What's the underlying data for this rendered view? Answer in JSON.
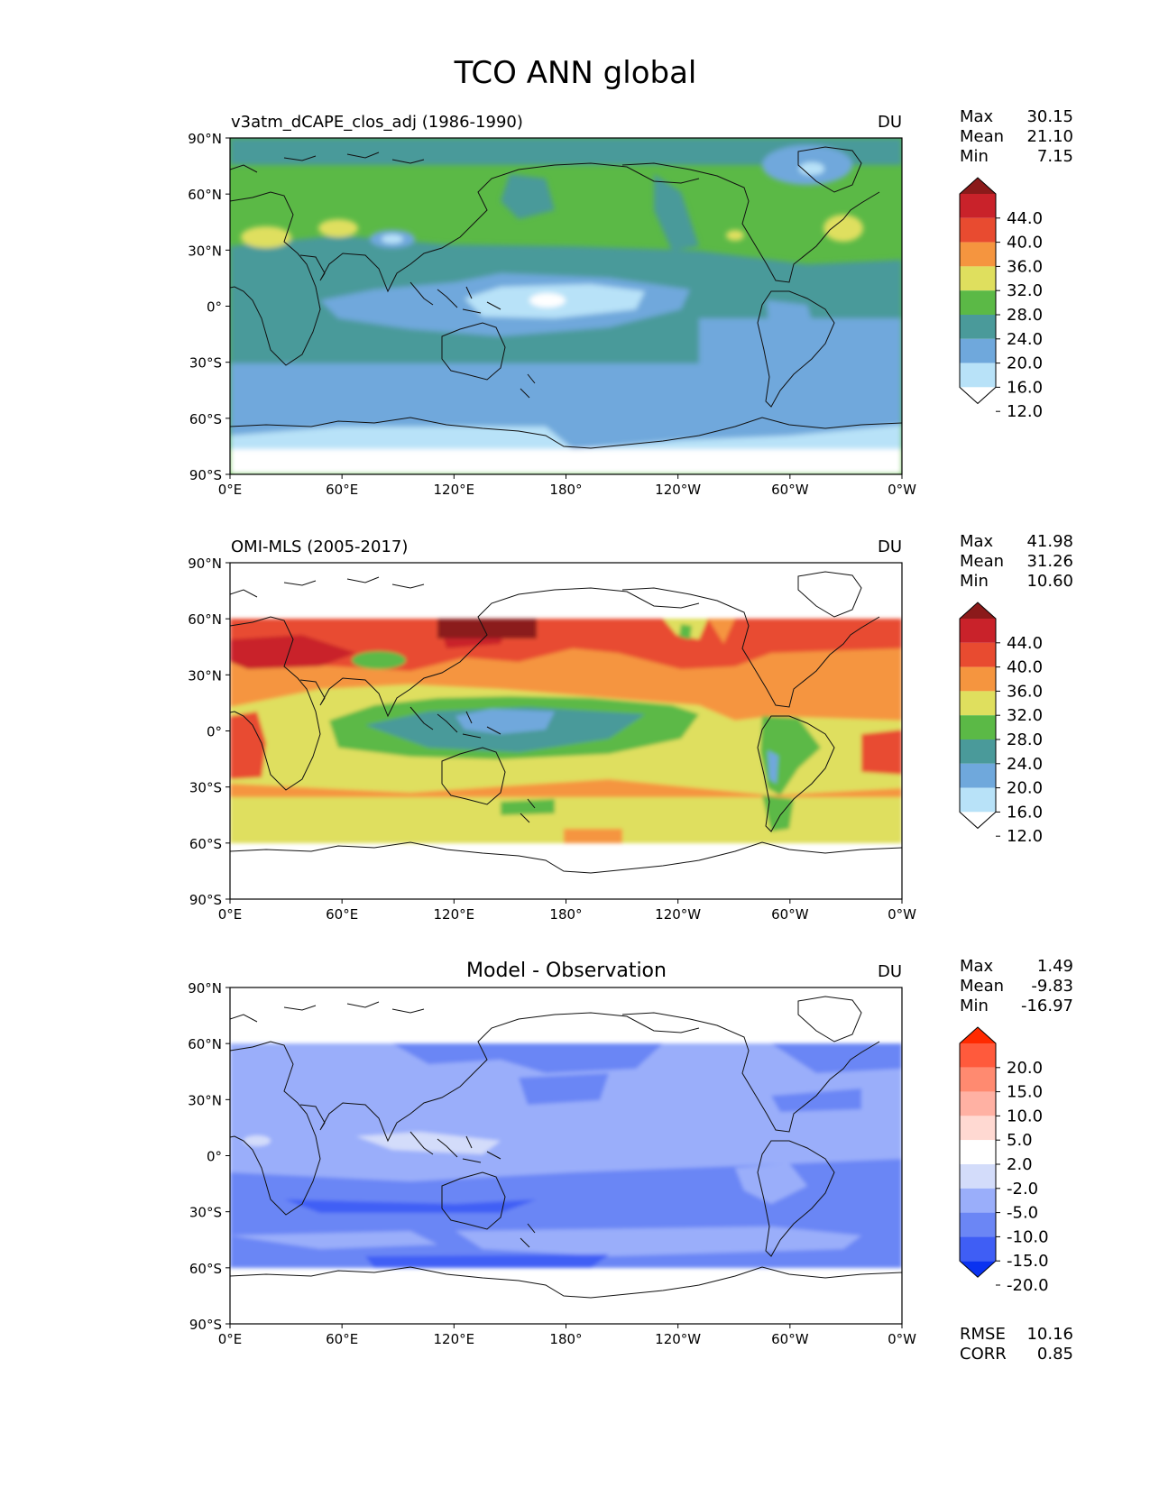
{
  "figure": {
    "title": "TCO ANN global"
  },
  "axes": {
    "lat_labels": [
      "90°N",
      "60°N",
      "30°N",
      "0°",
      "30°S",
      "60°S",
      "90°S"
    ],
    "lon_labels": [
      "0°E",
      "60°E",
      "120°E",
      "180°",
      "120°W",
      "60°W",
      "0°W"
    ]
  },
  "panels": [
    {
      "title_left": "v3atm_dCAPE_clos_adj (1986-1990)",
      "title_center": "",
      "units": "DU",
      "stats": [
        {
          "label": "Max",
          "value": "30.15"
        },
        {
          "label": "Mean",
          "value": "21.10"
        },
        {
          "label": "Min",
          "value": "7.15"
        }
      ],
      "footer_stats": []
    },
    {
      "title_left": "OMI-MLS (2005-2017)",
      "title_center": "",
      "units": "DU",
      "stats": [
        {
          "label": "Max",
          "value": "41.98"
        },
        {
          "label": "Mean",
          "value": "31.26"
        },
        {
          "label": "Min",
          "value": "10.60"
        }
      ],
      "footer_stats": []
    },
    {
      "title_left": "",
      "title_center": "Model - Observation",
      "units": "DU",
      "stats": [
        {
          "label": "Max",
          "value": "1.49"
        },
        {
          "label": "Mean",
          "value": "-9.83"
        },
        {
          "label": "Min",
          "value": "-16.97"
        }
      ],
      "footer_stats": [
        {
          "label": "RMSE",
          "value": "10.16"
        },
        {
          "label": "CORR",
          "value": "0.85"
        }
      ]
    }
  ],
  "colorbars": {
    "field": {
      "labels": [
        "44.0",
        "40.0",
        "36.0",
        "32.0",
        "28.0",
        "24.0",
        "20.0",
        "16.0",
        "12.0"
      ],
      "colors": [
        "#8b1a1a",
        "#c9222a",
        "#e84b30",
        "#f5953f",
        "#dfdf5e",
        "#5bb946",
        "#4a9a9a",
        "#6fa8dc",
        "#b8e2f8",
        "#ffffff"
      ]
    },
    "diff": {
      "labels": [
        "20.0",
        "15.0",
        "10.0",
        "5.0",
        "2.0",
        "-2.0",
        "-5.0",
        "-10.0",
        "-15.0",
        "-20.0"
      ],
      "colors": [
        "#ff2a00",
        "#ff5a3c",
        "#ff8a70",
        "#ffb1a3",
        "#ffd9d2",
        "#ffffff",
        "#d3dcfa",
        "#9aaefa",
        "#6b86f5",
        "#3f5ef5",
        "#0a32f0"
      ]
    }
  },
  "map_data": {
    "projection": "equirectangular, 0°E to 360°E, 90°S to 90°N",
    "observation_coverage": "60°S to 60°N",
    "panel_fields": [
      "model total column ozone, values 7.15 to 30.15 DU",
      "observed total column ozone, values 10.60 to 41.98 DU",
      "model minus observation, values -16.97 to 1.49 DU"
    ]
  }
}
